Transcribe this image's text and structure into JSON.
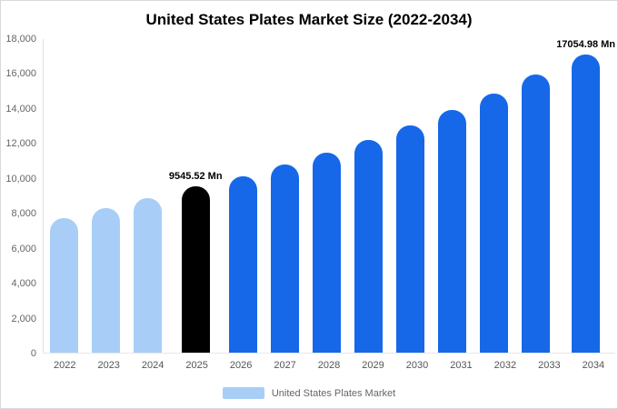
{
  "title": "United States Plates Market Size (2022-2034)",
  "legend": {
    "label": "United States Plates Market",
    "swatch_color": "#a8cef7"
  },
  "chart_data": {
    "type": "bar",
    "title": "United States Plates Market Size (2022-2034)",
    "categories": [
      "2022",
      "2023",
      "2024",
      "2025",
      "2026",
      "2027",
      "2028",
      "2029",
      "2030",
      "2031",
      "2032",
      "2033",
      "2034"
    ],
    "values": [
      7700,
      8250,
      8850,
      9545.52,
      10100,
      10750,
      11450,
      12200,
      13000,
      13900,
      14850,
      15900,
      17054.98
    ],
    "bar_colors": [
      "#a8cef7",
      "#a8cef7",
      "#a8cef7",
      "#000000",
      "#1668e8",
      "#1668e8",
      "#1668e8",
      "#1668e8",
      "#1668e8",
      "#1668e8",
      "#1668e8",
      "#1668e8",
      "#1668e8"
    ],
    "annotations": [
      {
        "index": 3,
        "text": "9545.52 Mn"
      },
      {
        "index": 12,
        "text": "17054.98 Mn"
      }
    ],
    "xlabel": "",
    "ylabel": "",
    "ylim": [
      0,
      18000
    ],
    "ytick_step": 2000,
    "ytick_labels": [
      "0",
      "2,000",
      "4,000",
      "6,000",
      "8,000",
      "10,000",
      "12,000",
      "14,000",
      "16,000",
      "18,000"
    ],
    "grid": false,
    "legend_position": "bottom",
    "legend_label": "United States Plates Market"
  }
}
